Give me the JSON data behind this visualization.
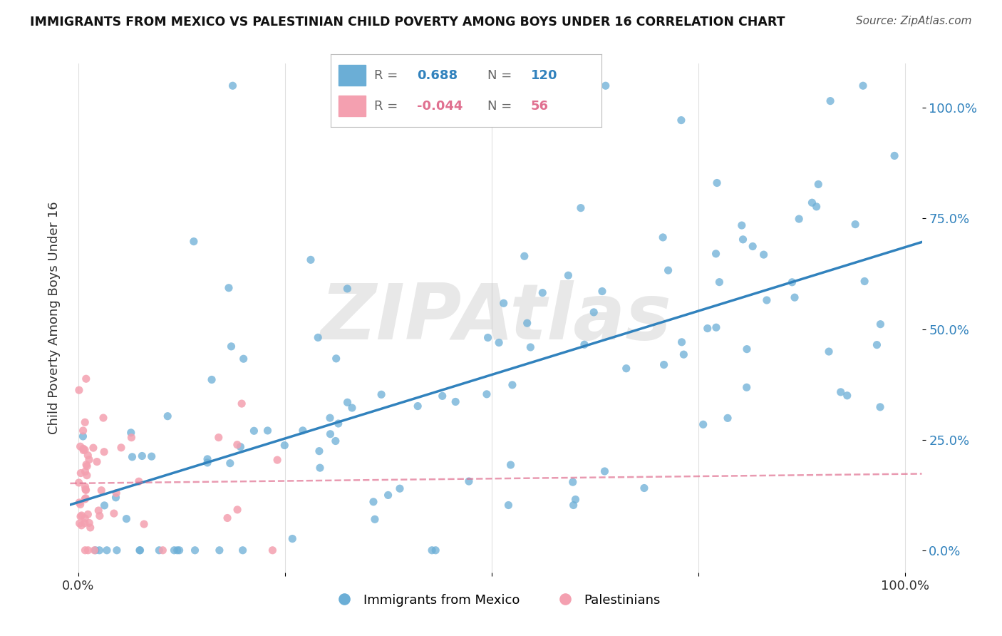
{
  "title": "IMMIGRANTS FROM MEXICO VS PALESTINIAN CHILD POVERTY AMONG BOYS UNDER 16 CORRELATION CHART",
  "source": "Source: ZipAtlas.com",
  "ylabel": "Child Poverty Among Boys Under 16",
  "watermark": "ZIPAtlas",
  "blue_R": 0.688,
  "blue_N": 120,
  "pink_R": -0.044,
  "pink_N": 56,
  "blue_color": "#6baed6",
  "pink_color": "#f4a0b0",
  "blue_line_color": "#3182bd",
  "pink_line_color": "#e07090",
  "background_color": "#ffffff",
  "grid_color": "#e0e0e0",
  "right_ytick_labels": [
    "0.0%",
    "25.0%",
    "50.0%",
    "75.0%",
    "100.0%"
  ],
  "right_ytick_values": [
    0.0,
    0.25,
    0.5,
    0.75,
    1.0
  ],
  "xtick_labels": [
    "0.0%",
    "",
    "",
    "",
    "100.0%"
  ],
  "xtick_values": [
    0.0,
    0.25,
    0.5,
    0.75,
    1.0
  ],
  "ylim": [
    -0.05,
    1.1
  ],
  "xlim": [
    -0.01,
    1.02
  ]
}
